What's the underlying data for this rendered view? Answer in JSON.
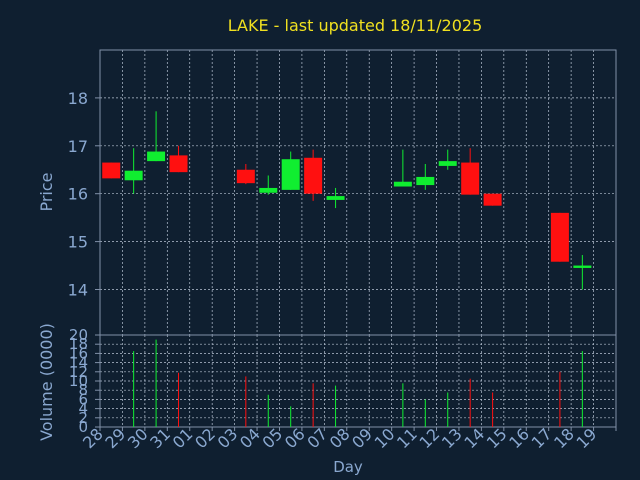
{
  "title": "LAKE - last updated 18/11/2025",
  "colors": {
    "background": "#0f1f30",
    "title": "#f0e020",
    "axis_text": "#8aa8d0",
    "frame": "#8090a8",
    "grid": "#b8c4d4",
    "up": "#10ee30",
    "down": "#ff1010"
  },
  "chart_data": [
    {
      "type": "candlestick",
      "ylabel": "Price",
      "ylim": [
        13.05,
        19.0
      ],
      "yticks": [
        14,
        15,
        16,
        17,
        18
      ],
      "grid": true,
      "day_labels": [
        "28",
        "29",
        "30",
        "31",
        "01",
        "02",
        "03",
        "04",
        "05",
        "06",
        "07",
        "08",
        "09",
        "10",
        "11",
        "12",
        "13",
        "14",
        "15",
        "16",
        "17",
        "18",
        "19"
      ],
      "candles": [
        {
          "day": "28",
          "open": 16.65,
          "close": 16.32,
          "high": 16.65,
          "low": 16.32
        },
        {
          "day": "29",
          "open": 16.28,
          "close": 16.48,
          "high": 16.95,
          "low": 16.0
        },
        {
          "day": "30",
          "open": 16.68,
          "close": 16.88,
          "high": 17.72,
          "low": 16.68
        },
        {
          "day": "31",
          "open": 16.8,
          "close": 16.45,
          "high": 17.0,
          "low": 16.45
        },
        {
          "day": "03",
          "open": 16.5,
          "close": 16.22,
          "high": 16.62,
          "low": 16.2
        },
        {
          "day": "04",
          "open": 16.02,
          "close": 16.12,
          "high": 16.38,
          "low": 15.98
        },
        {
          "day": "05",
          "open": 16.08,
          "close": 16.72,
          "high": 16.88,
          "low": 16.08
        },
        {
          "day": "06",
          "open": 16.75,
          "close": 16.0,
          "high": 16.92,
          "low": 15.85
        },
        {
          "day": "07",
          "open": 15.87,
          "close": 15.95,
          "high": 16.12,
          "low": 15.7
        },
        {
          "day": "10",
          "open": 16.15,
          "close": 16.25,
          "high": 16.92,
          "low": 16.15
        },
        {
          "day": "11",
          "open": 16.18,
          "close": 16.35,
          "high": 16.62,
          "low": 16.08
        },
        {
          "day": "12",
          "open": 16.58,
          "close": 16.68,
          "high": 16.92,
          "low": 16.5
        },
        {
          "day": "13",
          "open": 16.65,
          "close": 15.98,
          "high": 16.95,
          "low": 15.98
        },
        {
          "day": "14",
          "open": 16.0,
          "close": 15.75,
          "high": 16.0,
          "low": 15.75
        },
        {
          "day": "17",
          "open": 15.6,
          "close": 14.58,
          "high": 15.6,
          "low": 14.58
        },
        {
          "day": "18",
          "open": 14.45,
          "close": 14.5,
          "high": 14.72,
          "low": 14.0
        }
      ]
    },
    {
      "type": "bar",
      "ylabel": "Volume (0000)",
      "xlabel": "Day",
      "ylim": [
        0,
        20
      ],
      "yticks": [
        0,
        2,
        4,
        6,
        8,
        10,
        12,
        14,
        16,
        18,
        20
      ],
      "grid": true,
      "volumes": [
        {
          "day": "29",
          "value": 16.5
        },
        {
          "day": "30",
          "value": 19.0
        },
        {
          "day": "31",
          "value": 11.8
        },
        {
          "day": "03",
          "value": 11.0
        },
        {
          "day": "04",
          "value": 7.0
        },
        {
          "day": "05",
          "value": 4.5
        },
        {
          "day": "06",
          "value": 9.5
        },
        {
          "day": "07",
          "value": 9.0
        },
        {
          "day": "10",
          "value": 9.5
        },
        {
          "day": "11",
          "value": 6.0
        },
        {
          "day": "12",
          "value": 7.5
        },
        {
          "day": "13",
          "value": 10.5
        },
        {
          "day": "14",
          "value": 7.5
        },
        {
          "day": "17",
          "value": 12.0
        },
        {
          "day": "18",
          "value": 16.5
        }
      ]
    }
  ]
}
